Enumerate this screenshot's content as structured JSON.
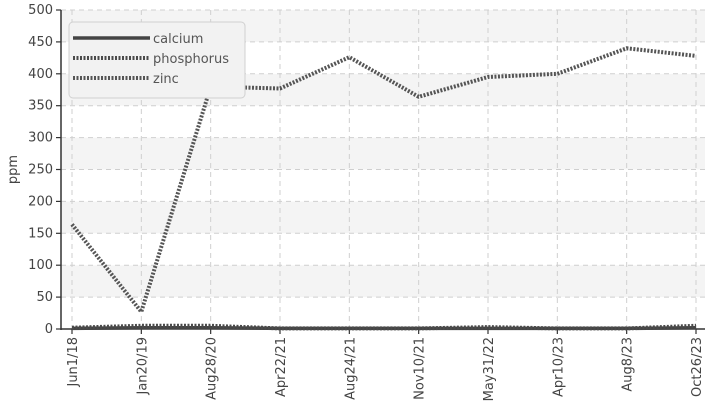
{
  "chart_data": {
    "type": "line",
    "title": "",
    "xlabel": "",
    "ylabel": "ppm",
    "ylim": [
      0,
      500
    ],
    "yticks": [
      0,
      50,
      100,
      150,
      200,
      250,
      300,
      350,
      400,
      450,
      500
    ],
    "categories": [
      "Jun1/18",
      "Jan20/19",
      "Aug28/20",
      "Apr22/21",
      "Aug24/21",
      "Nov10/21",
      "May31/22",
      "Apr10/23",
      "Aug8/23",
      "Oct26/23"
    ],
    "series": [
      {
        "name": "calcium",
        "values": [
          1,
          2,
          2,
          1,
          1,
          1,
          1,
          1,
          1,
          2
        ],
        "color": "#444444",
        "style": "solid"
      },
      {
        "name": "phosphorus",
        "values": [
          2,
          5,
          5,
          1,
          1,
          1,
          3,
          1,
          1,
          5
        ],
        "color": "#4a4a4a",
        "style": "dotted"
      },
      {
        "name": "zinc",
        "values": [
          164,
          27,
          380,
          377,
          426,
          364,
          395,
          400,
          440,
          428
        ],
        "color": "#555555",
        "style": "dotted"
      }
    ],
    "grid": true,
    "legend_position": "top-left"
  }
}
